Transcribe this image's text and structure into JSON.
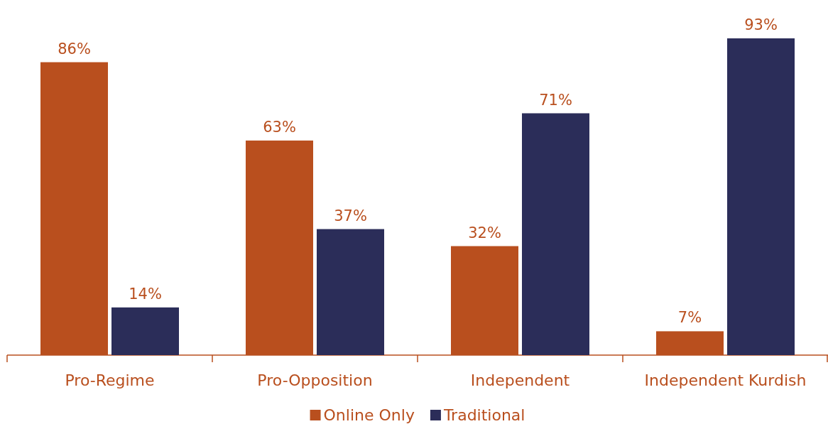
{
  "chart_data": {
    "type": "bar",
    "categories": [
      "Pro-Regime",
      "Pro-Opposition",
      "Independent",
      "Independent Kurdish"
    ],
    "series": [
      {
        "name": "Online Only",
        "color": "#b94f1e",
        "values": [
          86,
          63,
          32,
          7
        ],
        "value_labels": [
          "86%",
          "63%",
          "32%",
          "7%"
        ]
      },
      {
        "name": "Traditional",
        "color": "#2b2d59",
        "values": [
          14,
          37,
          71,
          93
        ],
        "value_labels": [
          "14%",
          "37%",
          "71%",
          "93%"
        ]
      }
    ],
    "legend": "bottom"
  }
}
